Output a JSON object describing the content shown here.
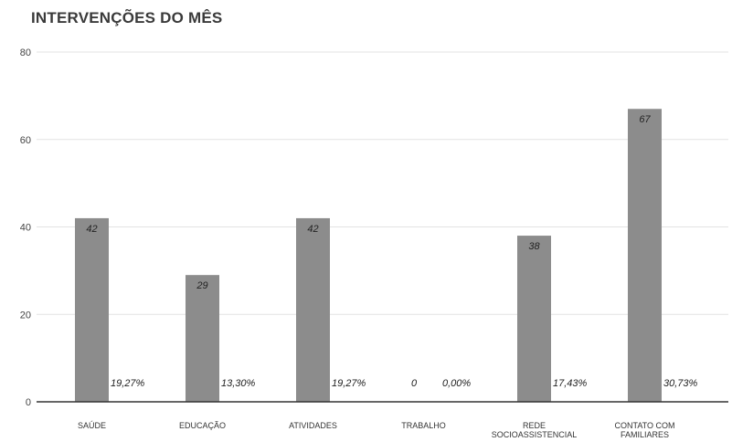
{
  "chart_data": {
    "type": "bar",
    "title": "INTERVENÇÕES DO MÊS",
    "xlabel": "",
    "ylabel": "",
    "ylim": [
      0,
      80
    ],
    "yticks": [
      0,
      20,
      40,
      60,
      80
    ],
    "grid": true,
    "legend": "none",
    "categories": [
      [
        "SAÚDE"
      ],
      [
        "EDUCAÇÃO"
      ],
      [
        "ATIVIDADES"
      ],
      [
        "TRABALHO"
      ],
      [
        "REDE",
        "SOCIOASSISTENCIAL"
      ],
      [
        "CONTATO COM",
        "FAMILIARES"
      ]
    ],
    "values": [
      42,
      29,
      42,
      0,
      38,
      67
    ],
    "percent_labels": [
      "19,27%",
      "13,30%",
      "19,27%",
      "0,00%",
      "17,43%",
      "30,73%"
    ],
    "bar_color": "#8c8c8c"
  }
}
